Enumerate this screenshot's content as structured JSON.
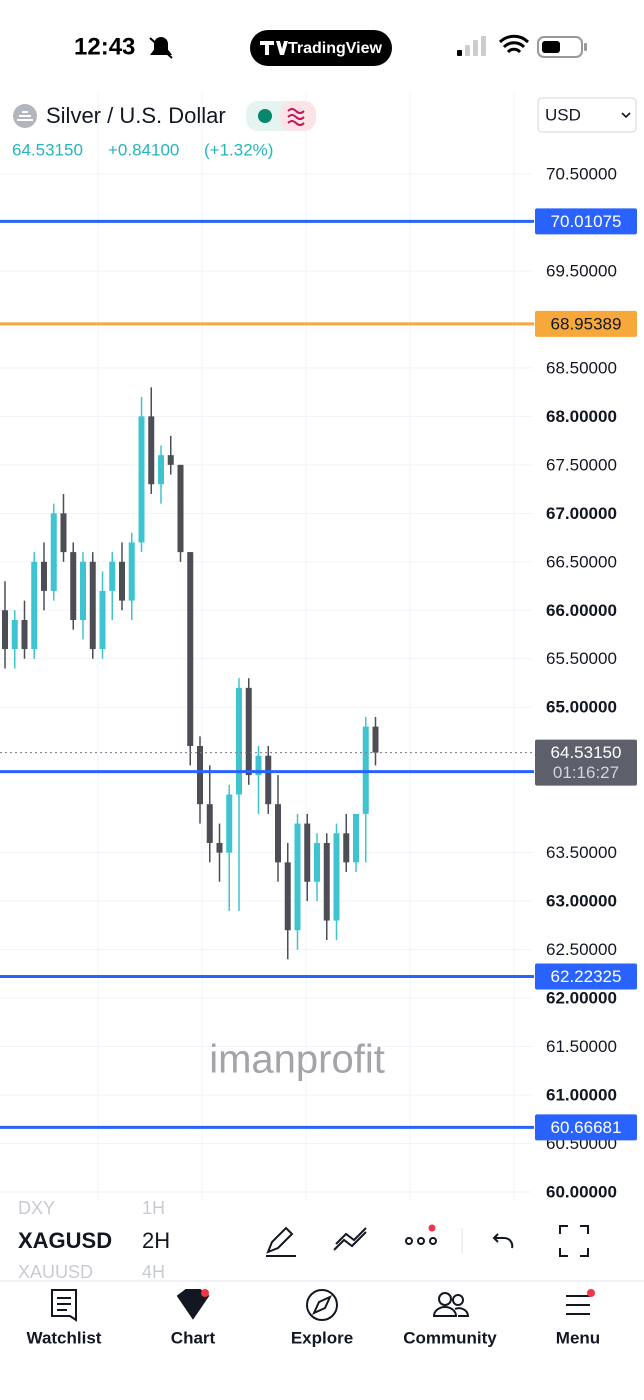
{
  "status_bar": {
    "time": "12:43",
    "app": "TradingView"
  },
  "header": {
    "symbol": "Silver / U.S. Dollar",
    "price": "64.53150",
    "change": "+0.84100",
    "change_pct": "(+1.32%)",
    "currency": "USD"
  },
  "chart_data": {
    "type": "candlestick",
    "open": [
      66.0,
      65.6,
      65.9,
      65.6,
      66.5,
      66.2,
      67.0,
      66.6,
      65.9,
      66.5,
      65.6,
      66.2,
      66.5,
      66.1,
      66.7,
      68.0,
      67.3,
      67.6,
      67.5,
      66.6,
      64.6,
      64.0,
      63.6,
      63.5,
      64.1,
      65.2,
      64.3,
      64.5,
      64.0,
      63.4,
      62.7,
      63.8,
      63.2,
      63.6,
      62.8,
      63.7,
      63.4,
      63.9,
      64.8
    ],
    "high": [
      66.3,
      66.0,
      66.1,
      66.6,
      66.7,
      67.1,
      67.2,
      66.7,
      66.6,
      66.6,
      66.4,
      66.6,
      66.7,
      66.8,
      68.2,
      68.3,
      67.7,
      67.8,
      67.5,
      66.6,
      64.7,
      64.4,
      63.8,
      64.2,
      65.3,
      65.3,
      64.6,
      64.6,
      64.3,
      63.6,
      63.9,
      63.9,
      63.7,
      63.7,
      63.8,
      63.9,
      63.9,
      64.9,
      64.9
    ],
    "low": [
      65.4,
      65.4,
      65.5,
      65.5,
      66.0,
      66.1,
      66.5,
      65.8,
      65.7,
      65.5,
      65.5,
      65.9,
      66.0,
      65.9,
      66.6,
      67.2,
      67.1,
      67.4,
      66.5,
      64.4,
      63.8,
      63.4,
      63.2,
      62.9,
      62.9,
      64.2,
      63.9,
      63.9,
      63.2,
      62.4,
      62.5,
      63.0,
      63.0,
      62.6,
      62.6,
      63.3,
      63.3,
      63.4,
      64.4
    ],
    "close": [
      65.6,
      65.9,
      65.6,
      66.5,
      66.2,
      67.0,
      66.6,
      65.9,
      66.5,
      65.6,
      66.2,
      66.5,
      66.1,
      66.7,
      68.0,
      67.3,
      67.6,
      67.5,
      66.6,
      64.6,
      64.0,
      63.6,
      63.5,
      64.1,
      65.2,
      64.3,
      64.5,
      64.0,
      63.4,
      62.7,
      63.8,
      63.2,
      63.6,
      62.8,
      63.7,
      63.4,
      63.9,
      64.8,
      64.5315
    ],
    "up_color": "#3dc4d0",
    "down_color": "#4d4d55",
    "ylim": [
      60,
      70.5
    ],
    "yticks": [
      {
        "value": 70.5,
        "label": "70.50000"
      },
      {
        "value": 69.5,
        "label": "69.50000"
      },
      {
        "value": 68.5,
        "label": "68.50000"
      },
      {
        "value": 68,
        "label": "68.00000"
      },
      {
        "value": 67.5,
        "label": "67.50000"
      },
      {
        "value": 67,
        "label": "67.00000"
      },
      {
        "value": 66.5,
        "label": "66.50000"
      },
      {
        "value": 66,
        "label": "66.00000"
      },
      {
        "value": 65.5,
        "label": "65.50000"
      },
      {
        "value": 65,
        "label": "65.00000"
      },
      {
        "value": 63.5,
        "label": "63.50000"
      },
      {
        "value": 63,
        "label": "63.00000"
      },
      {
        "value": 62.5,
        "label": "62.50000"
      },
      {
        "value": 62,
        "label": "62.00000"
      },
      {
        "value": 61.5,
        "label": "61.50000"
      },
      {
        "value": 61,
        "label": "61.00000"
      },
      {
        "value": 60.5,
        "label": "60.50000"
      },
      {
        "value": 60,
        "label": "60.00000"
      }
    ],
    "grid": true,
    "levels": [
      {
        "value": 70.01075,
        "color": "#2962ff"
      },
      {
        "value": 68.95389,
        "color": "#f7a83a"
      },
      {
        "value": 64.33531,
        "color": "#2962ff"
      },
      {
        "value": 62.22325,
        "color": "#2962ff"
      },
      {
        "value": 60.66681,
        "color": "#2962ff"
      }
    ],
    "last_price": {
      "value": 64.5315,
      "label": "64.53150"
    },
    "countdown": "01:16:27",
    "watermark": "imanprofit"
  },
  "toolbar": {
    "symbol": "XAGUSD",
    "symbol_prev": "DXY",
    "symbol_next": "XAUUSD",
    "interval": "2H",
    "interval_prev": "1H",
    "interval_next": "4H"
  },
  "tab_bar": {
    "items": [
      "Watchlist",
      "Chart",
      "Explore",
      "Community",
      "Menu"
    ]
  }
}
